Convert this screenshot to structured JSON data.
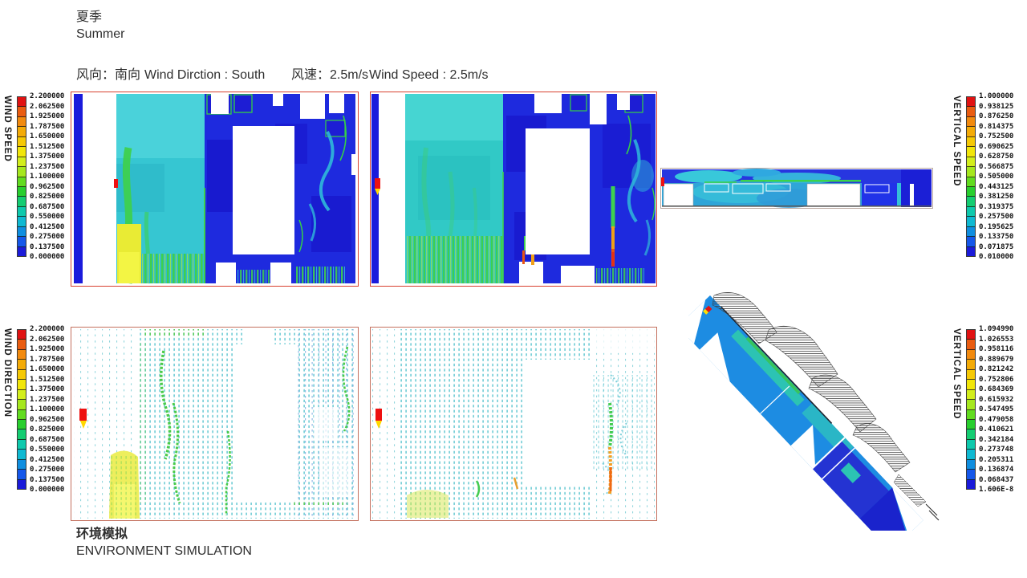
{
  "header": {
    "season_zh": "夏季",
    "season_en": "Summer",
    "direction_zh": "风向：南向",
    "direction_en": "Wind Dirction : South",
    "speed_zh": "风速：2.5m/s",
    "speed_en": "Wind Speed : 2.5m/s"
  },
  "footer": {
    "caption_zh": "环境模拟",
    "caption_en": "ENVIRONMENT SIMULATION"
  },
  "palette": [
    "#e11212",
    "#ea5c10",
    "#f28a0e",
    "#f4ab07",
    "#f6c905",
    "#f2e60a",
    "#d3ee1c",
    "#a6e81e",
    "#62dc1f",
    "#28cf2e",
    "#14cd72",
    "#0ec9ad",
    "#0fb9d2",
    "#0f8ee0",
    "#1557ea",
    "#1b1bd9"
  ],
  "colorbars": {
    "wind_speed": {
      "title": "WIND SPEED",
      "ticks": [
        "2.200000",
        "2.062500",
        "1.925000",
        "1.787500",
        "1.650000",
        "1.512500",
        "1.375000",
        "1.237500",
        "1.100000",
        "0.962500",
        "0.825000",
        "0.687500",
        "0.550000",
        "0.412500",
        "0.275000",
        "0.137500",
        "0.000000"
      ]
    },
    "vertical_speed_top": {
      "title": "VERTICAL SPEED",
      "ticks": [
        "1.000000",
        "0.938125",
        "0.876250",
        "0.814375",
        "0.752500",
        "0.690625",
        "0.628750",
        "0.566875",
        "0.505000",
        "0.443125",
        "0.381250",
        "0.319375",
        "0.257500",
        "0.195625",
        "0.133750",
        "0.071875",
        "0.010000"
      ]
    },
    "wind_direction": {
      "title": "WIND DIRECTION",
      "ticks": [
        "2.200000",
        "2.062500",
        "1.925000",
        "1.787500",
        "1.650000",
        "1.512500",
        "1.375000",
        "1.237500",
        "1.100000",
        "0.962500",
        "0.825000",
        "0.687500",
        "0.550000",
        "0.412500",
        "0.275000",
        "0.137500",
        "0.000000"
      ]
    },
    "vertical_speed_bottom": {
      "title": "VERTICAL SPEED",
      "ticks": [
        "1.094990",
        "1.026553",
        "0.958116",
        "0.889679",
        "0.821242",
        "0.752806",
        "0.684369",
        "0.615932",
        "0.547495",
        "0.479058",
        "0.410621",
        "0.342184",
        "0.273748",
        "0.205311",
        "0.136874",
        "0.068437",
        "1.606E-8"
      ]
    }
  },
  "chart_data": [
    {
      "type": "heatmap",
      "name": "plan-contour-left",
      "title": "Plan-view wind speed contour (scheme 1)",
      "legend": "WIND SPEED",
      "units": "m/s",
      "value_range": [
        0.0,
        2.2
      ],
      "tick_values": [
        2.2,
        2.0625,
        1.925,
        1.7875,
        1.65,
        1.5125,
        1.375,
        1.2375,
        1.1,
        0.9625,
        0.825,
        0.6875,
        0.55,
        0.4125,
        0.275,
        0.1375,
        0.0
      ],
      "notes": "blue inlet strip at left, teal high-flow corridor with green/yellow acceleration streaks, white building footprints, red domain border"
    },
    {
      "type": "heatmap",
      "name": "plan-contour-right",
      "title": "Plan-view wind speed contour (scheme 2)",
      "legend": "WIND SPEED",
      "units": "m/s",
      "value_range": [
        0.0,
        2.2
      ],
      "tick_values": [
        2.2,
        2.0625,
        1.925,
        1.7875,
        1.65,
        1.5125,
        1.375,
        1.2375,
        1.1,
        0.9625,
        0.825,
        0.6875,
        0.55,
        0.4125,
        0.275,
        0.1375,
        0.0
      ],
      "notes": "uniform teal corridor left half, blue courtyard right half with red/green jet streaks at building gaps"
    },
    {
      "type": "heatmap",
      "name": "section-contour",
      "title": "Sectional vertical speed contour",
      "legend": "VERTICAL SPEED",
      "units": "m/s",
      "value_range": [
        0.01,
        1.0
      ],
      "tick_values": [
        1.0,
        0.938125,
        0.87625,
        0.814375,
        0.7525,
        0.690625,
        0.62875,
        0.566875,
        0.505,
        0.443125,
        0.38125,
        0.319375,
        0.2575,
        0.195625,
        0.13375,
        0.071875,
        0.01
      ],
      "notes": "long thin building section, blue sky band with green shear line over roofs, white building volumes"
    },
    {
      "type": "vector-field",
      "name": "vector-plan-left",
      "title": "Plan-view wind direction vectors (scheme 1)",
      "legend": "WIND DIRECTION",
      "units": "m/s",
      "value_range": [
        0.0,
        2.2
      ],
      "tick_values": [
        2.2,
        2.0625,
        1.925,
        1.7875,
        1.65,
        1.5125,
        1.375,
        1.2375,
        1.1,
        0.9625,
        0.825,
        0.6875,
        0.55,
        0.4125,
        0.275,
        0.1375,
        0.0
      ],
      "notes": "grid of cyan arrows flowing north, green accelerated filaments, yellow high-speed pocket at lower-left, white building voids"
    },
    {
      "type": "vector-field",
      "name": "vector-plan-right",
      "title": "Plan-view wind direction vectors (scheme 2)",
      "legend": "WIND DIRECTION",
      "units": "m/s",
      "value_range": [
        0.0,
        2.2
      ],
      "tick_values": [
        2.2,
        2.0625,
        1.925,
        1.7875,
        1.65,
        1.5125,
        1.375,
        1.2375,
        1.1,
        0.9625,
        0.825,
        0.6875,
        0.55,
        0.4125,
        0.275,
        0.1375,
        0.0
      ],
      "notes": "cyan vector grid, orange/green jet along right building gap, pale yellow pocket bottom-left"
    },
    {
      "type": "heatmap",
      "name": "axon-3d-view",
      "title": "Axonometric 3D cut-plane, vertical speed",
      "legend": "VERTICAL SPEED",
      "units": "m/s",
      "value_range": [
        1.606e-08,
        1.09499
      ],
      "tick_values": [
        1.09499,
        1.026553,
        0.958116,
        0.889679,
        0.821242,
        0.752806,
        0.684369,
        0.615932,
        0.547495,
        0.479058,
        0.410621,
        0.342184,
        0.273748,
        0.205311,
        0.136874,
        0.068437,
        1.606e-08
      ],
      "notes": "diagonal blue/cyan cut plane with black wireframe building mesh stacked along its upper edge, red hotspot at top-left"
    }
  ]
}
